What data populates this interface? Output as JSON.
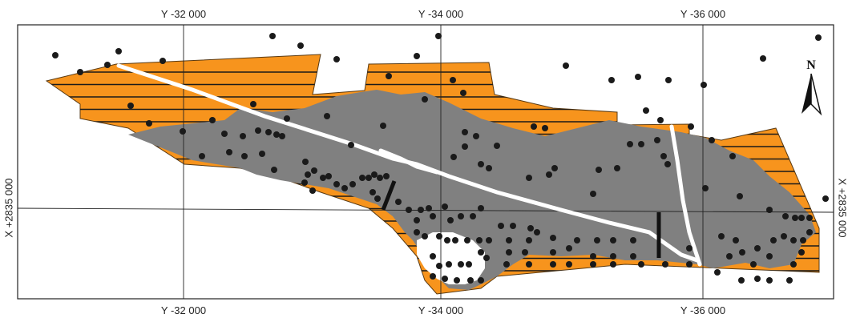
{
  "grid": {
    "top_labels": [
      "Y -32 000",
      "Y -34 000",
      "Y -36 000"
    ],
    "bottom_labels": [
      "Y -32 000",
      "Y -34 000",
      "Y -36 000"
    ],
    "left_label": "X +2835 000",
    "right_label": "X +2835 000"
  },
  "north_arrow": {
    "label": "N",
    "icon": "north-arrow-icon"
  },
  "colors": {
    "hatched_zone": "#f7941d",
    "grey_zone": "#808080",
    "hatch_line": "#1a1a1a",
    "points": "#1a1a1a",
    "road": "#ffffff",
    "grid": "#222222"
  }
}
